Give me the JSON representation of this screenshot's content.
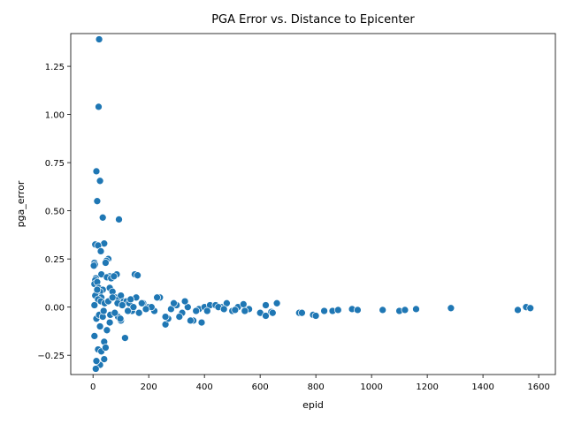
{
  "chart_data": {
    "type": "scatter",
    "title": "PGA Error vs. Distance to Epicenter",
    "xlabel": "epid",
    "ylabel": "pga_error",
    "xlim": [
      -80,
      1660
    ],
    "ylim": [
      -0.35,
      1.42
    ],
    "x_ticks": [
      0,
      200,
      400,
      600,
      800,
      1000,
      1200,
      1400,
      1600
    ],
    "y_ticks": [
      -0.25,
      0.0,
      0.25,
      0.5,
      0.75,
      1.0,
      1.25
    ],
    "x_tick_labels": [
      "0",
      "200",
      "400",
      "600",
      "800",
      "1000",
      "1200",
      "1400",
      "1600"
    ],
    "y_tick_labels": [
      "−0.25",
      "0.00",
      "0.25",
      "0.50",
      "0.75",
      "1.00",
      "1.25"
    ],
    "grid": false,
    "legend": "none",
    "marker_color": "#1f77b4",
    "x": [
      22,
      20,
      12,
      25,
      15,
      35,
      93,
      40,
      8,
      18,
      55,
      48,
      5,
      7,
      3,
      28,
      45,
      60,
      30,
      50,
      10,
      8,
      5,
      15,
      20,
      35,
      25,
      12,
      30,
      18,
      25,
      40,
      40,
      30,
      10,
      45,
      12,
      5,
      60,
      70,
      80,
      90,
      100,
      110,
      120,
      130,
      150,
      160,
      85,
      65,
      75,
      95,
      50,
      140,
      155,
      115,
      60,
      90,
      100,
      180,
      200,
      220,
      240,
      260,
      280,
      300,
      320,
      340,
      360,
      380,
      400,
      420,
      440,
      460,
      480,
      500,
      520,
      540,
      560,
      600,
      620,
      640,
      660,
      740,
      750,
      790,
      800,
      830,
      860,
      880,
      930,
      950,
      1040,
      1100,
      1120,
      1160,
      1285,
      1525,
      1555,
      1570,
      270,
      310,
      350,
      390,
      260,
      230,
      210,
      290,
      330,
      370,
      410,
      450,
      470,
      510,
      545,
      620,
      645,
      8,
      12,
      18,
      22,
      28,
      35,
      42,
      15,
      25,
      5,
      38,
      55,
      62,
      70,
      78,
      88,
      98,
      105,
      125,
      135,
      145,
      165,
      175,
      190
    ],
    "y": [
      1.39,
      1.04,
      0.705,
      0.655,
      0.55,
      0.465,
      0.455,
      0.33,
      0.325,
      0.32,
      0.25,
      0.24,
      0.23,
      0.22,
      0.215,
      0.29,
      0.23,
      0.16,
      0.17,
      0.155,
      0.15,
      0.14,
      0.12,
      0.13,
      0.1,
      0.09,
      0.08,
      0.07,
      0.05,
      -0.22,
      -0.3,
      -0.27,
      -0.18,
      -0.23,
      -0.32,
      -0.21,
      -0.28,
      -0.15,
      0.1,
      0.08,
      0.05,
      0.04,
      0.06,
      0.03,
      0.03,
      0.02,
      0.17,
      0.165,
      0.17,
      0.15,
      0.16,
      -0.06,
      -0.12,
      -0.02,
      0.05,
      -0.16,
      -0.08,
      -0.05,
      -0.07,
      0.02,
      0.0,
      -0.02,
      0.05,
      -0.09,
      -0.01,
      0.01,
      -0.03,
      0.0,
      -0.07,
      -0.01,
      0.0,
      0.01,
      0.01,
      0.0,
      0.02,
      -0.02,
      0.0,
      0.015,
      -0.01,
      -0.03,
      -0.045,
      -0.025,
      0.02,
      -0.03,
      -0.03,
      -0.04,
      -0.045,
      -0.02,
      -0.02,
      -0.015,
      -0.01,
      -0.015,
      -0.015,
      -0.02,
      -0.015,
      -0.01,
      -0.005,
      -0.015,
      0.0,
      -0.005,
      -0.06,
      -0.05,
      -0.07,
      -0.08,
      -0.05,
      0.05,
      0.0,
      0.02,
      0.03,
      -0.02,
      -0.02,
      0.0,
      -0.01,
      -0.015,
      -0.02,
      0.01,
      -0.03,
      0.06,
      -0.06,
      0.04,
      -0.04,
      0.03,
      -0.05,
      0.02,
      0.09,
      -0.1,
      0.01,
      -0.02,
      0.03,
      -0.04,
      0.05,
      -0.03,
      0.02,
      -0.06,
      0.01,
      -0.02,
      0.04,
      0.0,
      -0.03,
      0.02,
      -0.01
    ]
  }
}
